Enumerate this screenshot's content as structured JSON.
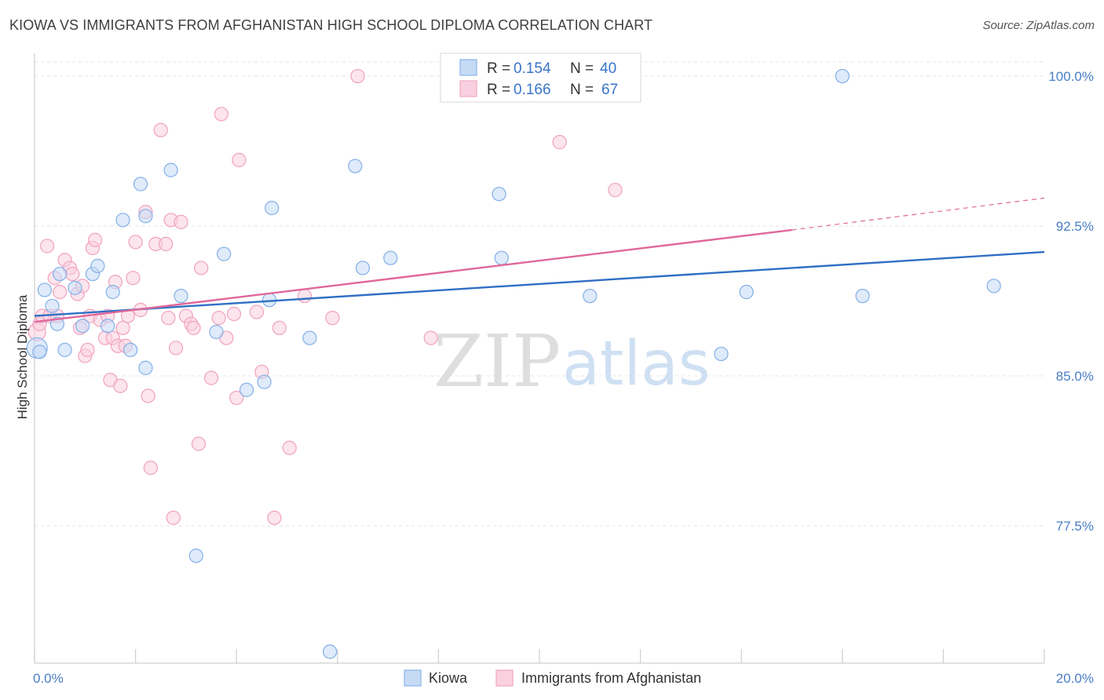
{
  "title": "KIOWA VS IMMIGRANTS FROM AFGHANISTAN HIGH SCHOOL DIPLOMA CORRELATION CHART",
  "source": "Source: ZipAtlas.com",
  "watermark": {
    "zip": "ZIP",
    "atlas": "atlas"
  },
  "chart_data": {
    "type": "scatter",
    "title": "KIOWA VS IMMIGRANTS FROM AFGHANISTAN HIGH SCHOOL DIPLOMA CORRELATION CHART",
    "xlabel": "",
    "ylabel": "High School Diploma",
    "xlim": [
      0,
      20
    ],
    "ylim": [
      70.5,
      101.5
    ],
    "x_tick_labels": [
      {
        "value": 0,
        "label": "0.0%"
      },
      {
        "value": 20,
        "label": "20.0%"
      }
    ],
    "y_tick_labels": [
      {
        "value": 100,
        "label": "100.0%"
      },
      {
        "value": 92.5,
        "label": "92.5%"
      },
      {
        "value": 85,
        "label": "85.0%"
      },
      {
        "value": 77.5,
        "label": "77.5%"
      }
    ],
    "legend": {
      "position": "top-center",
      "entries": [
        {
          "r_label": "R =",
          "r_value": "0.154",
          "n_label": "N =",
          "n_value": "40"
        },
        {
          "r_label": "R =",
          "r_value": "0.166",
          "n_label": "N =",
          "n_value": "67"
        }
      ]
    },
    "series": [
      {
        "name": "Kiowa",
        "color": "#8ab4e8",
        "fill": "#c5daf5",
        "line_color": "#2f6fc4",
        "trend": {
          "x0": 0,
          "y0": 88.0,
          "x1": 20,
          "y1": 91.2
        },
        "points": [
          [
            0.05,
            86.4
          ],
          [
            0.2,
            89.3
          ],
          [
            0.35,
            88.5
          ],
          [
            0.45,
            87.6
          ],
          [
            0.5,
            90.1
          ],
          [
            0.6,
            86.3
          ],
          [
            0.8,
            89.4
          ],
          [
            0.95,
            87.5
          ],
          [
            1.15,
            90.1
          ],
          [
            1.25,
            90.5
          ],
          [
            1.45,
            87.5
          ],
          [
            1.55,
            89.2
          ],
          [
            1.9,
            86.3
          ],
          [
            1.75,
            92.8
          ],
          [
            2.2,
            85.4
          ],
          [
            2.1,
            94.6
          ],
          [
            2.2,
            93.0
          ],
          [
            2.7,
            95.3
          ],
          [
            2.9,
            89.0
          ],
          [
            3.2,
            76.0
          ],
          [
            3.6,
            87.2
          ],
          [
            3.75,
            91.1
          ],
          [
            4.2,
            84.3
          ],
          [
            4.55,
            84.7
          ],
          [
            4.65,
            88.8
          ],
          [
            4.7,
            93.4
          ],
          [
            5.45,
            86.9
          ],
          [
            5.85,
            71.2
          ],
          [
            6.35,
            95.5
          ],
          [
            6.5,
            90.4
          ],
          [
            7.05,
            90.9
          ],
          [
            9.2,
            94.1
          ],
          [
            9.25,
            90.9
          ],
          [
            11.0,
            89.0
          ],
          [
            13.6,
            86.1
          ],
          [
            14.1,
            89.2
          ],
          [
            16.0,
            100.0
          ],
          [
            16.4,
            89.0
          ],
          [
            19.0,
            89.5
          ],
          [
            0.1,
            86.2
          ]
        ]
      },
      {
        "name": "Immigrants from Afghanistan",
        "color": "#f1a7c1",
        "fill": "#f9d0df",
        "line_color": "#e0689a",
        "trend": {
          "x0": 0,
          "y0": 87.7,
          "x1": 15,
          "y1": 92.3
        },
        "trend_dashed": {
          "x0": 15,
          "y0": 92.3,
          "x1": 20,
          "y1": 93.9
        },
        "points": [
          [
            0.05,
            87.2
          ],
          [
            0.1,
            87.6
          ],
          [
            0.15,
            88.0
          ],
          [
            0.25,
            91.5
          ],
          [
            0.3,
            88.0
          ],
          [
            0.4,
            89.9
          ],
          [
            0.45,
            88.0
          ],
          [
            0.5,
            89.2
          ],
          [
            0.6,
            90.8
          ],
          [
            0.7,
            90.4
          ],
          [
            0.75,
            90.1
          ],
          [
            0.85,
            89.1
          ],
          [
            0.9,
            87.4
          ],
          [
            0.95,
            89.5
          ],
          [
            1.0,
            86.0
          ],
          [
            1.05,
            86.3
          ],
          [
            1.1,
            88.0
          ],
          [
            1.15,
            91.4
          ],
          [
            1.2,
            91.8
          ],
          [
            1.3,
            87.8
          ],
          [
            1.4,
            86.9
          ],
          [
            1.45,
            88.0
          ],
          [
            1.5,
            84.8
          ],
          [
            1.55,
            86.9
          ],
          [
            1.6,
            89.7
          ],
          [
            1.65,
            86.5
          ],
          [
            1.7,
            84.5
          ],
          [
            1.75,
            87.4
          ],
          [
            1.8,
            86.5
          ],
          [
            1.85,
            88.0
          ],
          [
            1.95,
            89.9
          ],
          [
            2.0,
            91.7
          ],
          [
            2.1,
            88.3
          ],
          [
            2.2,
            93.2
          ],
          [
            2.25,
            84.0
          ],
          [
            2.3,
            80.4
          ],
          [
            2.4,
            91.6
          ],
          [
            2.5,
            97.3
          ],
          [
            2.6,
            91.6
          ],
          [
            2.65,
            87.9
          ],
          [
            2.7,
            92.8
          ],
          [
            2.75,
            77.9
          ],
          [
            2.8,
            86.4
          ],
          [
            2.9,
            92.7
          ],
          [
            3.0,
            88.0
          ],
          [
            3.1,
            87.6
          ],
          [
            3.15,
            87.4
          ],
          [
            3.25,
            81.6
          ],
          [
            3.3,
            90.4
          ],
          [
            3.5,
            84.9
          ],
          [
            3.65,
            87.9
          ],
          [
            3.7,
            98.1
          ],
          [
            3.8,
            86.9
          ],
          [
            3.95,
            88.1
          ],
          [
            4.0,
            83.9
          ],
          [
            4.05,
            95.8
          ],
          [
            4.4,
            88.2
          ],
          [
            4.5,
            85.2
          ],
          [
            4.75,
            77.9
          ],
          [
            4.85,
            87.4
          ],
          [
            5.05,
            81.4
          ],
          [
            5.35,
            89.0
          ],
          [
            5.9,
            87.9
          ],
          [
            6.4,
            100.0
          ],
          [
            7.85,
            86.9
          ],
          [
            10.4,
            96.7
          ],
          [
            11.5,
            94.3
          ]
        ]
      }
    ]
  }
}
